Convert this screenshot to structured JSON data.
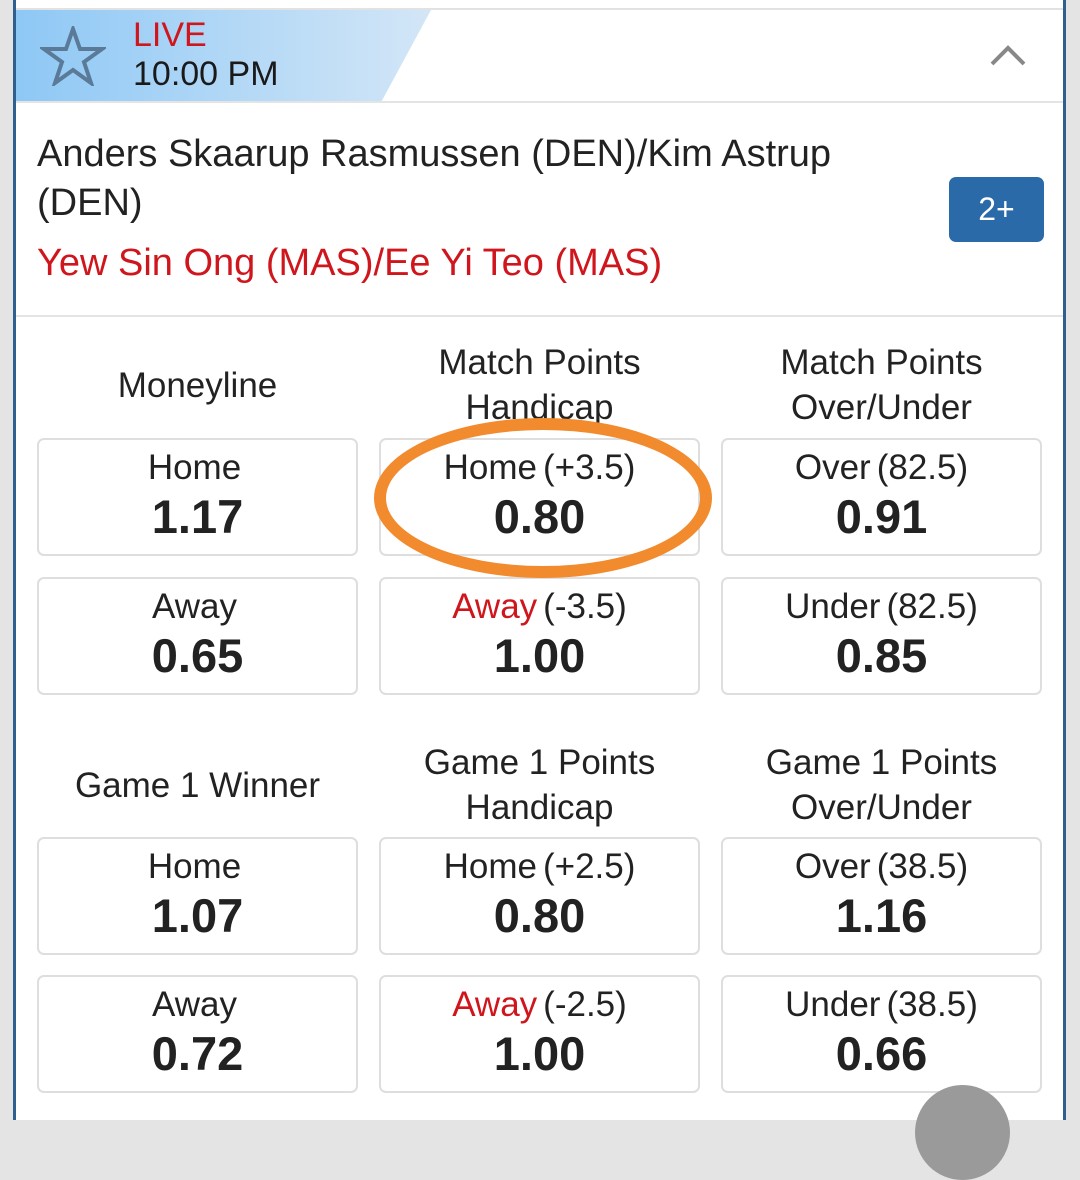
{
  "header": {
    "live_label": "LIVE",
    "time": "10:00 PM",
    "favorite_icon": "star-icon",
    "collapse_icon": "chevron-up-icon"
  },
  "match": {
    "home_team": "Anders Skaarup Rasmussen (DEN)/Kim Astrup (DEN)",
    "away_team": "Yew Sin Ong (MAS)/Ee Yi Teo (MAS)",
    "more_markets_label": "2+"
  },
  "markets": [
    {
      "title": "Moneyline",
      "options": [
        {
          "label": "Home",
          "line": "",
          "odds": "1.17"
        },
        {
          "label": "Away",
          "line": "",
          "odds": "0.65"
        }
      ]
    },
    {
      "title": "Match Points Handicap",
      "options": [
        {
          "label": "Home",
          "line": "(+3.5)",
          "odds": "0.80"
        },
        {
          "label": "Away",
          "line": "(-3.5)",
          "odds": "1.00"
        }
      ]
    },
    {
      "title": "Match Points Over/Under",
      "options": [
        {
          "label": "Over",
          "line": "(82.5)",
          "odds": "0.91"
        },
        {
          "label": "Under",
          "line": "(82.5)",
          "odds": "0.85"
        }
      ]
    },
    {
      "title": "Game 1 Winner",
      "options": [
        {
          "label": "Home",
          "line": "",
          "odds": "1.07"
        },
        {
          "label": "Away",
          "line": "",
          "odds": "0.72"
        }
      ]
    },
    {
      "title": "Game 1 Points Handicap",
      "options": [
        {
          "label": "Home",
          "line": "(+2.5)",
          "odds": "0.80"
        },
        {
          "label": "Away",
          "line": "(-2.5)",
          "odds": "1.00"
        }
      ]
    },
    {
      "title": "Game 1 Points Over/Under",
      "options": [
        {
          "label": "Over",
          "line": "(38.5)",
          "odds": "1.16"
        },
        {
          "label": "Under",
          "line": "(38.5)",
          "odds": "0.66"
        }
      ]
    }
  ],
  "colors": {
    "live": "#d0161d",
    "away_team": "#d0161d",
    "badge": "#2a6aa8",
    "highlight_ring": "#f28a2e"
  }
}
